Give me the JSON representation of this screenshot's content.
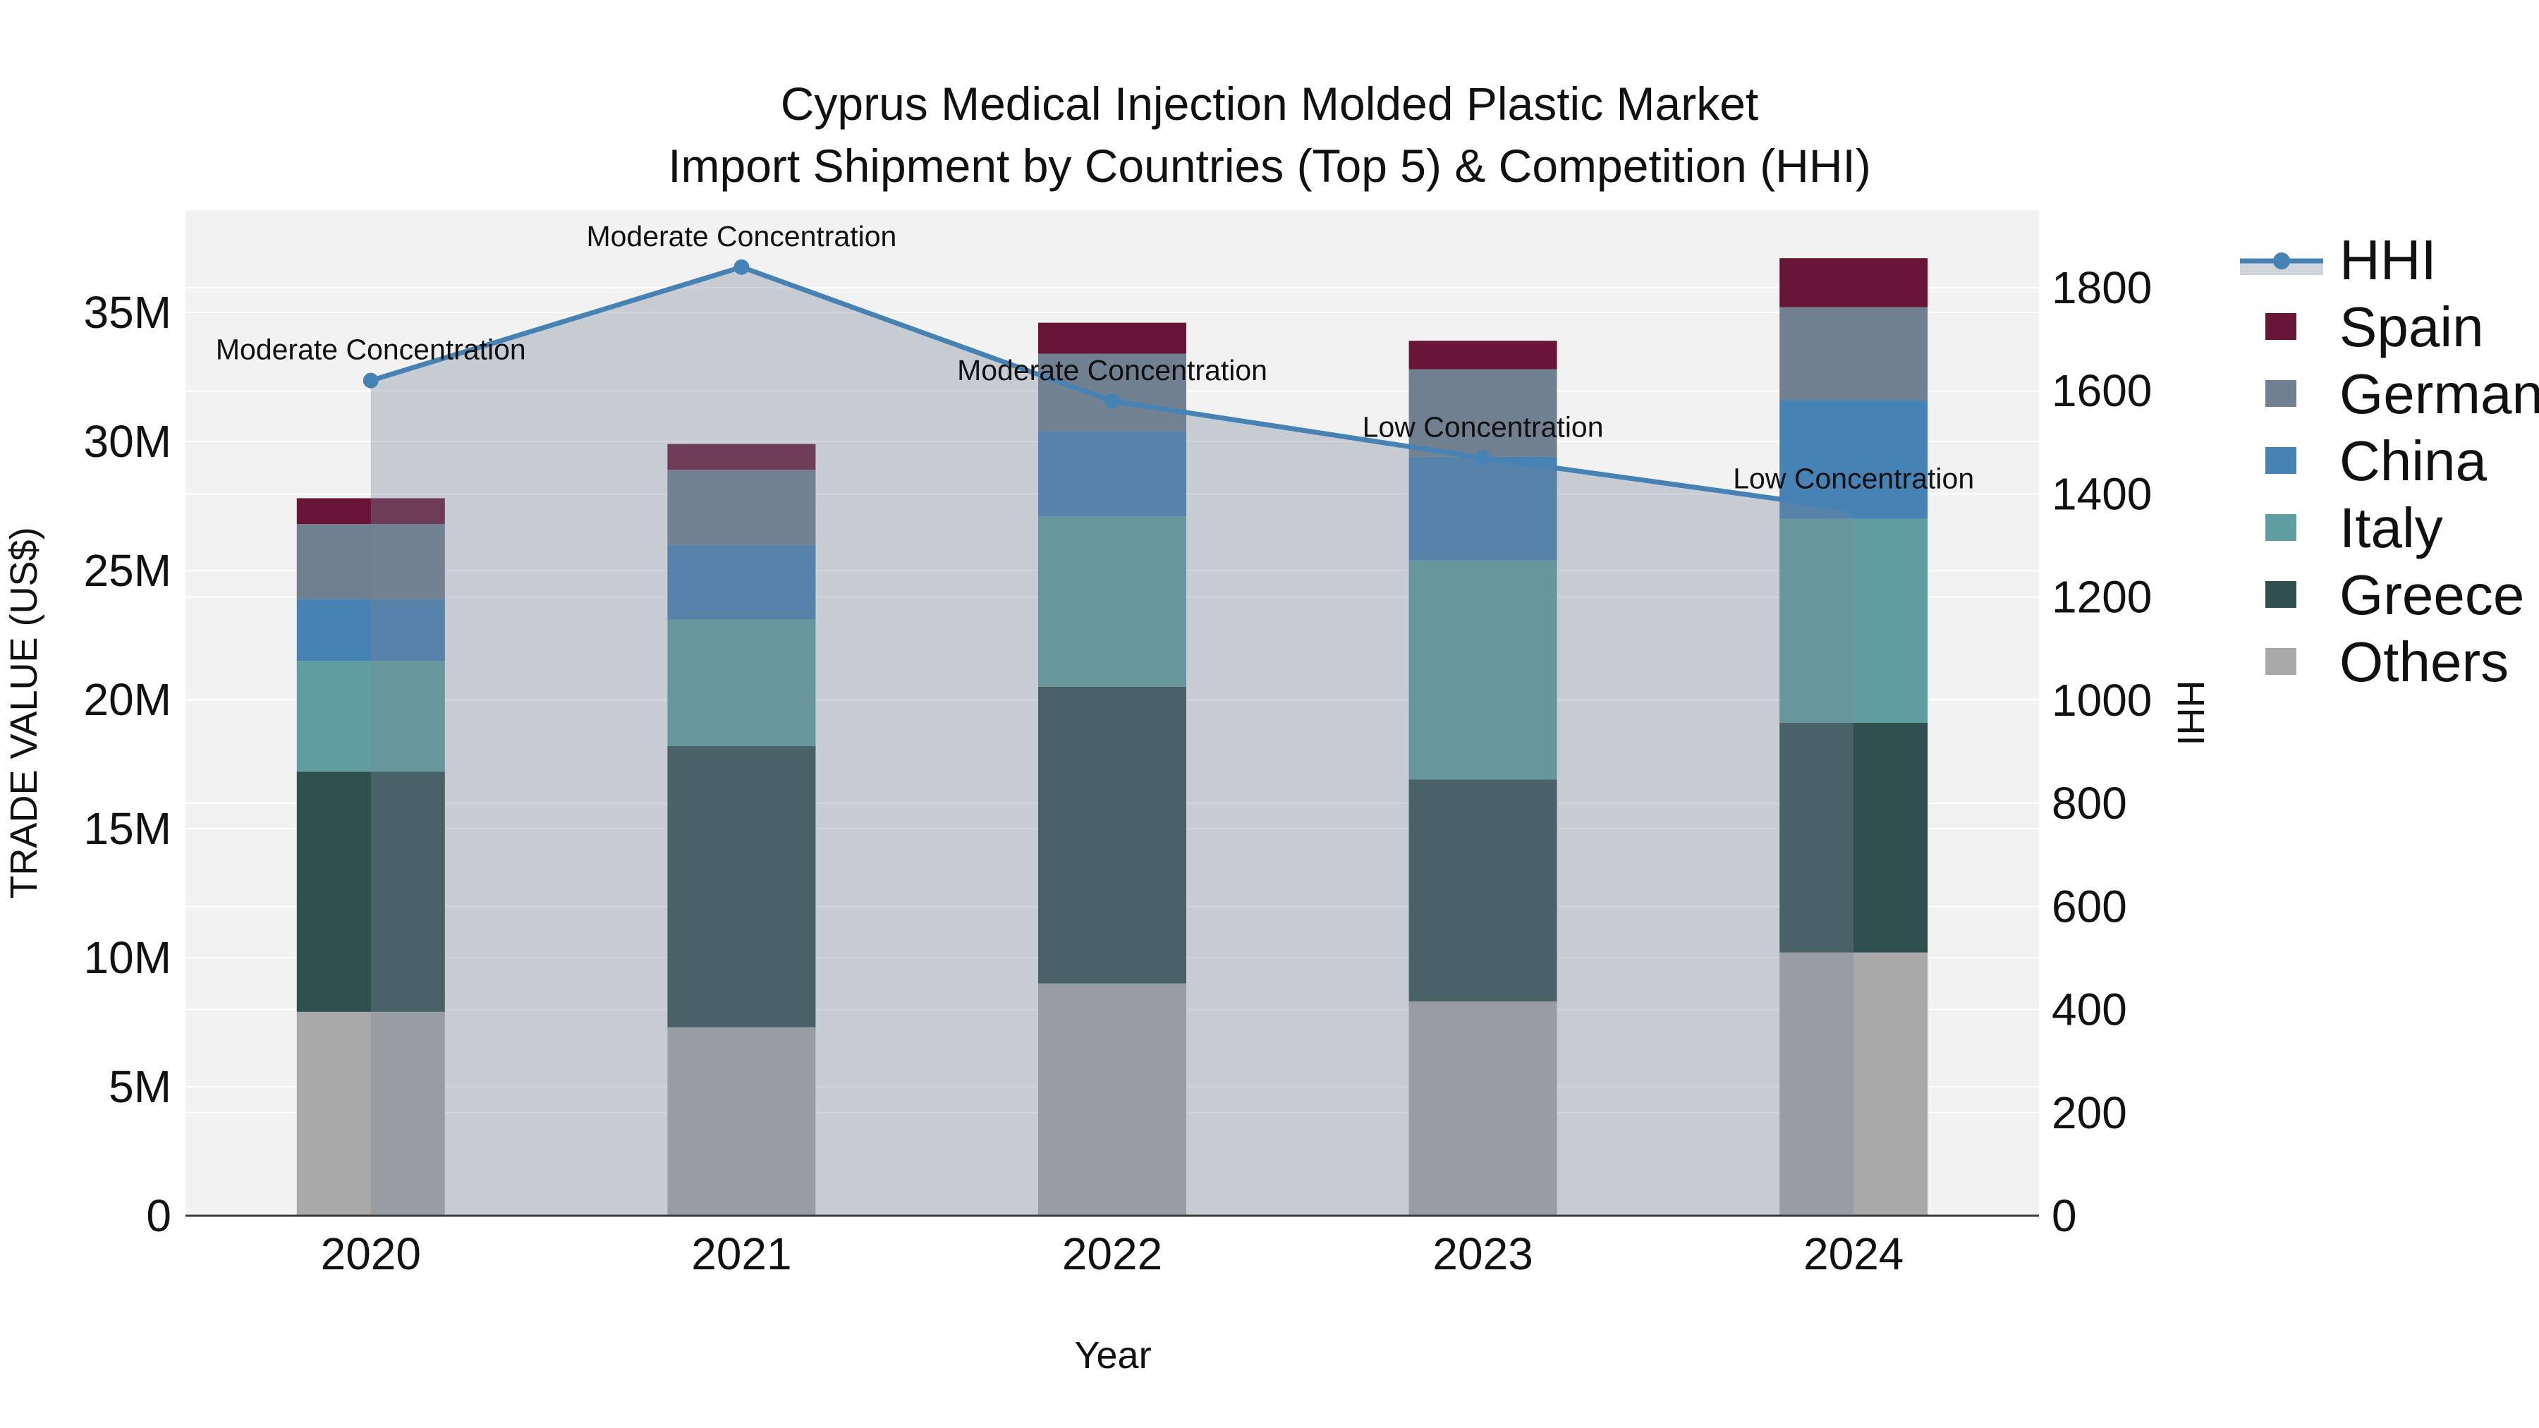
{
  "chart_data": {
    "type": "bar",
    "subtype": "stacked-bar-with-line-overlay",
    "title_lines": [
      "Cyprus Medical Injection Molded Plastic Market",
      "Import Shipment by Countries (Top 5) & Competition (HHI)"
    ],
    "xlabel": "Year",
    "ylabel_left": "TRADE VALUE (US$)",
    "ylabel_right": "HHI",
    "categories": [
      "2020",
      "2021",
      "2022",
      "2023",
      "2024"
    ],
    "bar_value_unit": "million US$",
    "stack_series_bottom_to_top": [
      {
        "name": "Others",
        "color": "#a9a9a9",
        "values": [
          7.9,
          7.3,
          9.0,
          8.3,
          10.2
        ]
      },
      {
        "name": "Greece",
        "color": "#2f4f4f",
        "values": [
          9.3,
          10.9,
          11.5,
          8.6,
          8.9
        ]
      },
      {
        "name": "Italy",
        "color": "#5f9ea0",
        "values": [
          4.3,
          4.9,
          6.6,
          8.5,
          7.9
        ]
      },
      {
        "name": "China",
        "color": "#4682b4",
        "values": [
          2.4,
          2.9,
          3.3,
          4.0,
          4.6
        ]
      },
      {
        "name": "Germany",
        "color": "#708090",
        "values": [
          2.9,
          2.9,
          3.0,
          3.4,
          3.6
        ]
      },
      {
        "name": "Spain",
        "color": "#681538",
        "values": [
          1.0,
          1.0,
          1.2,
          1.1,
          1.9
        ]
      }
    ],
    "stack_totals": [
      27.8,
      29.9,
      34.6,
      33.9,
      37.1
    ],
    "line_series": {
      "name": "HHI",
      "color": "#4682b4",
      "area_fill_color": "rgba(119,136,153,0.35)",
      "values": [
        1620,
        1840,
        1580,
        1470,
        1370
      ]
    },
    "annotations": [
      {
        "category": "2020",
        "text": "Moderate Concentration"
      },
      {
        "category": "2021",
        "text": "Moderate Concentration"
      },
      {
        "category": "2022",
        "text": "Moderate Concentration"
      },
      {
        "category": "2023",
        "text": "Low Concentration"
      },
      {
        "category": "2024",
        "text": "Low Concentration"
      }
    ],
    "y_left": {
      "tick_labels": [
        "0",
        "5M",
        "10M",
        "15M",
        "20M",
        "25M",
        "30M",
        "35M"
      ],
      "tick_values_millions": [
        0,
        5,
        10,
        15,
        20,
        25,
        30,
        35
      ],
      "range_millions": [
        0,
        39
      ]
    },
    "y_right": {
      "tick_labels": [
        "0",
        "200",
        "400",
        "600",
        "800",
        "1000",
        "1200",
        "1400",
        "1600",
        "1800"
      ],
      "tick_values": [
        0,
        200,
        400,
        600,
        800,
        1000,
        1200,
        1400,
        1600,
        1800
      ],
      "range": [
        0,
        1950
      ]
    },
    "legend_order_top_to_bottom": [
      "HHI",
      "Spain",
      "Germany",
      "China",
      "Italy",
      "Greece",
      "Others"
    ],
    "legend_position": "right",
    "grid": true,
    "plot_bg_color": "#f2f2f2",
    "grid_color": "#ffffff",
    "axis_line_color": "#3a3a3a"
  }
}
